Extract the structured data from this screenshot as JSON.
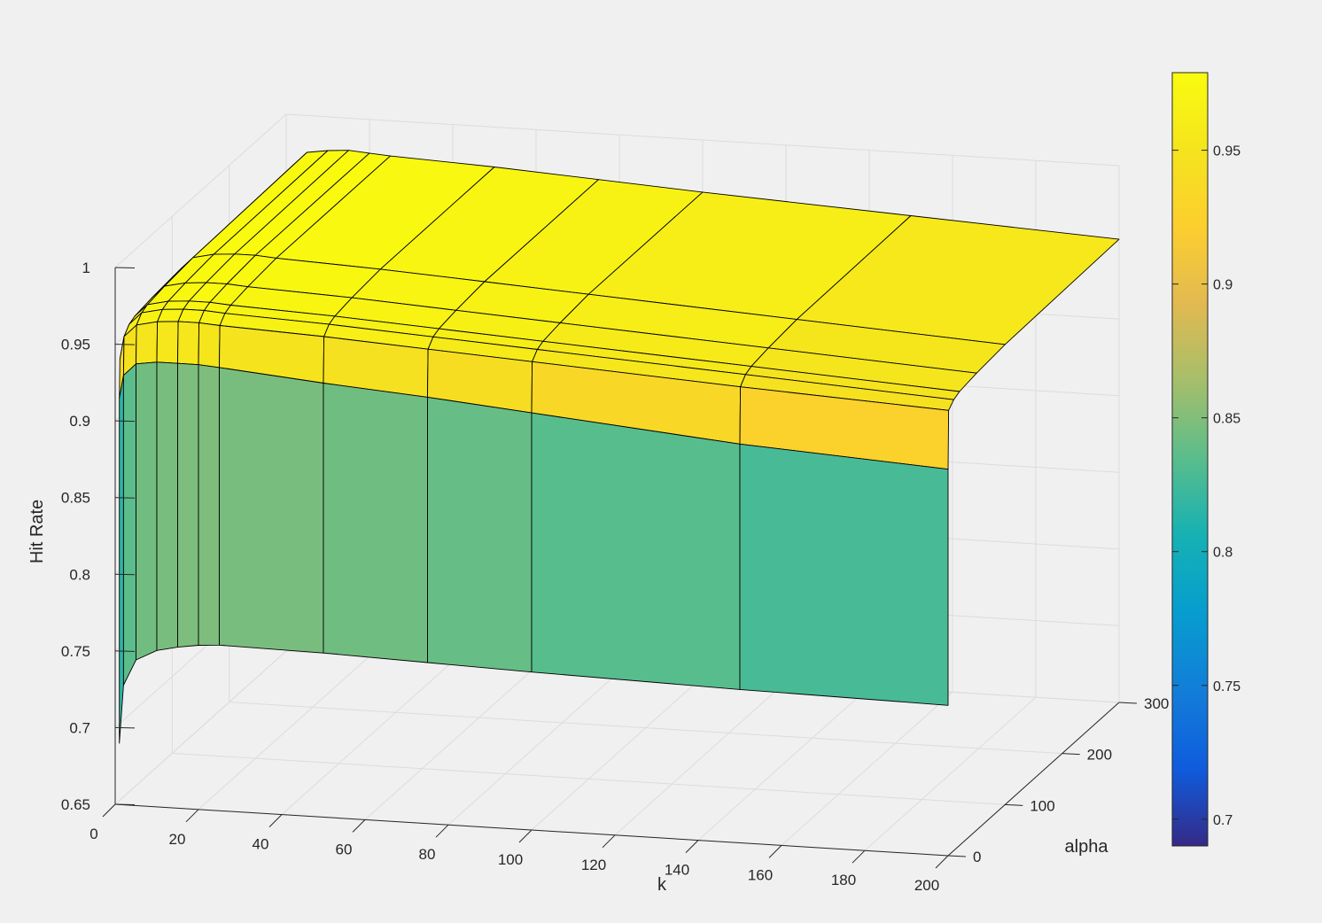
{
  "chart_data": {
    "type": "surface3d",
    "title": "",
    "xlabel": "k",
    "ylabel": "alpha",
    "zlabel": "Hit Rate",
    "xlim": [
      0,
      200
    ],
    "ylim": [
      0,
      300
    ],
    "zlim": [
      0.65,
      1.0
    ],
    "x_ticks": [
      0,
      20,
      40,
      60,
      80,
      100,
      120,
      140,
      160,
      180,
      200
    ],
    "y_ticks": [
      0,
      100,
      200,
      300
    ],
    "z_ticks": [
      0.65,
      0.7,
      0.75,
      0.8,
      0.85,
      0.9,
      0.95,
      1.0
    ],
    "x_tick_labels": [
      "0",
      "20",
      "40",
      "60",
      "80",
      "100",
      "120",
      "140",
      "160",
      "180",
      "200"
    ],
    "y_tick_labels": [
      "0",
      "100",
      "200",
      "300"
    ],
    "z_tick_labels": [
      "0.65",
      "0.7",
      "0.75",
      "0.8",
      "0.85",
      "0.9",
      "0.95",
      "1"
    ],
    "k": [
      1,
      2,
      5,
      10,
      15,
      20,
      25,
      50,
      75,
      100,
      150,
      200
    ],
    "alpha": [
      0,
      0.001,
      1,
      10,
      20,
      50,
      100,
      300
    ],
    "hit_rate": [
      [
        0.69,
        0.728,
        0.745,
        0.752,
        0.755,
        0.757,
        0.758,
        0.757,
        0.755,
        0.753,
        0.75,
        0.748
      ],
      [
        0.915,
        0.93,
        0.938,
        0.94,
        0.94,
        0.94,
        0.939,
        0.933,
        0.928,
        0.922,
        0.91,
        0.902
      ],
      [
        0.94,
        0.955,
        0.963,
        0.966,
        0.967,
        0.967,
        0.966,
        0.963,
        0.959,
        0.955,
        0.947,
        0.94
      ],
      [
        0.944,
        0.96,
        0.968,
        0.971,
        0.972,
        0.972,
        0.971,
        0.968,
        0.964,
        0.96,
        0.952,
        0.944
      ],
      [
        0.946,
        0.962,
        0.97,
        0.973,
        0.974,
        0.974,
        0.973,
        0.97,
        0.966,
        0.962,
        0.954,
        0.946
      ],
      [
        0.948,
        0.964,
        0.972,
        0.975,
        0.976,
        0.976,
        0.975,
        0.972,
        0.968,
        0.964,
        0.956,
        0.948
      ],
      [
        0.95,
        0.966,
        0.974,
        0.977,
        0.978,
        0.978,
        0.977,
        0.974,
        0.97,
        0.966,
        0.958,
        0.95
      ],
      [
        0.952,
        0.968,
        0.976,
        0.978,
        0.979,
        0.978,
        0.977,
        0.974,
        0.97,
        0.966,
        0.959,
        0.952
      ]
    ],
    "colorbar": {
      "limits": [
        0.69,
        0.979
      ],
      "ticks": [
        0.7,
        0.75,
        0.8,
        0.85,
        0.9,
        0.95
      ],
      "tick_labels": [
        "0.7",
        "0.75",
        "0.8",
        "0.85",
        "0.9",
        "0.95"
      ],
      "colormap": "parula"
    },
    "grid": true,
    "box": true
  }
}
